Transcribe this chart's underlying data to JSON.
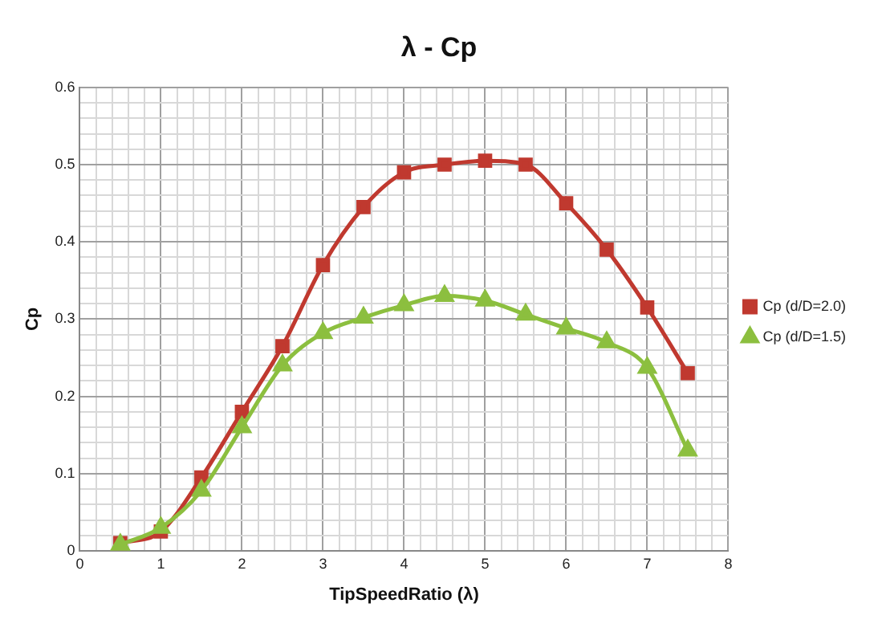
{
  "chart_data": {
    "type": "line",
    "title": "λ - Cp",
    "xlabel": "TipSpeedRatio (λ)",
    "ylabel": "Cp",
    "x": [
      0.5,
      1,
      1.5,
      2,
      2.5,
      3,
      3.5,
      4,
      4.5,
      5,
      5.5,
      6,
      6.5,
      7,
      7.5
    ],
    "series": [
      {
        "name": "Cp (d/D=2.0)",
        "color": "#c0392f",
        "marker": "square",
        "values": [
          0.01,
          0.025,
          0.095,
          0.18,
          0.265,
          0.37,
          0.445,
          0.49,
          0.5,
          0.505,
          0.5,
          0.45,
          0.39,
          0.315,
          0.23
        ]
      },
      {
        "name": "Cp (d/D=1.5)",
        "color": "#8cbf3f",
        "marker": "triangle",
        "values": [
          0.008,
          0.03,
          0.078,
          0.16,
          0.24,
          0.282,
          0.302,
          0.318,
          0.33,
          0.324,
          0.306,
          0.288,
          0.27,
          0.237,
          0.13
        ]
      }
    ],
    "xlim": [
      0,
      8
    ],
    "xticks": [
      0,
      {
        "value": 0.2,
        "label": null
      },
      {
        "value": 0.4,
        "label": null
      },
      {
        "value": 0.6,
        "label": null
      },
      {
        "value": 0.8,
        "label": null
      },
      1,
      {
        "value": 1.2,
        "label": null
      },
      {
        "value": 1.4,
        "label": null
      },
      {
        "value": 1.6,
        "label": null
      },
      {
        "value": 1.8,
        "label": null
      },
      2,
      {
        "value": 2.2,
        "label": null
      },
      {
        "value": 2.4,
        "label": null
      },
      {
        "value": 2.6,
        "label": null
      },
      {
        "value": 2.8,
        "label": null
      },
      3,
      {
        "value": 3.2,
        "label": null
      },
      {
        "value": 3.4,
        "label": null
      },
      {
        "value": 3.6,
        "label": null
      },
      {
        "value": 3.8,
        "label": null
      },
      4,
      {
        "value": 4.2,
        "label": null
      },
      {
        "value": 4.4,
        "label": null
      },
      {
        "value": 4.6,
        "label": null
      },
      {
        "value": 4.8,
        "label": null
      },
      5,
      {
        "value": 5.2,
        "label": null
      },
      {
        "value": 5.4,
        "label": null
      },
      {
        "value": 5.6,
        "label": null
      },
      {
        "value": 5.8,
        "label": null
      },
      6,
      {
        "value": 6.2,
        "label": null
      },
      {
        "value": 6.4,
        "label": null
      },
      {
        "value": 6.6,
        "label": null
      },
      {
        "value": 6.8,
        "label": null
      },
      7,
      {
        "value": 7.2,
        "label": null
      },
      {
        "value": 7.4,
        "label": null
      },
      {
        "value": 7.6,
        "label": null
      },
      {
        "value": 7.8,
        "label": null
      },
      8
    ],
    "ylim": [
      0,
      0.6
    ],
    "yticks": [
      0,
      {
        "value": 0.02,
        "label": null
      },
      {
        "value": 0.04,
        "label": null
      },
      {
        "value": 0.06,
        "label": null
      },
      {
        "value": 0.08,
        "label": null
      },
      0.1,
      {
        "value": 0.12,
        "label": null
      },
      {
        "value": 0.14,
        "label": null
      },
      {
        "value": 0.16,
        "label": null
      },
      {
        "value": 0.18,
        "label": null
      },
      0.2,
      {
        "value": 0.22,
        "label": null
      },
      {
        "value": 0.24,
        "label": null
      },
      {
        "value": 0.26,
        "label": null
      },
      {
        "value": 0.28,
        "label": null
      },
      0.3,
      {
        "value": 0.32,
        "label": null
      },
      {
        "value": 0.34,
        "label": null
      },
      {
        "value": 0.36,
        "label": null
      },
      {
        "value": 0.38,
        "label": null
      },
      0.4,
      {
        "value": 0.42,
        "label": null
      },
      {
        "value": 0.44,
        "label": null
      },
      {
        "value": 0.46,
        "label": null
      },
      {
        "value": 0.48,
        "label": null
      },
      0.5,
      {
        "value": 0.52,
        "label": null
      },
      {
        "value": 0.54,
        "label": null
      },
      {
        "value": 0.56,
        "label": null
      },
      {
        "value": 0.58,
        "label": null
      },
      0.6
    ],
    "grid": true,
    "legend": "right",
    "line_style": "solid"
  }
}
